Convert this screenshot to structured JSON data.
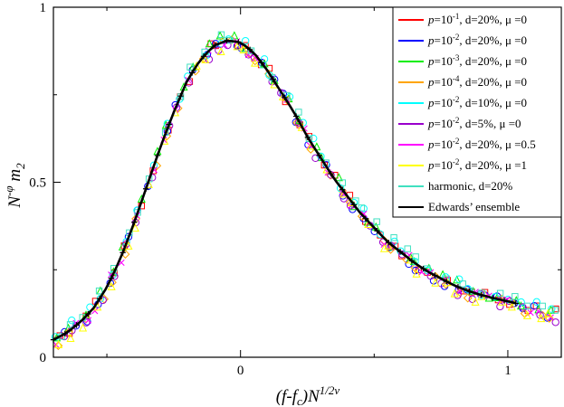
{
  "chart_data": {
    "type": "scatter",
    "title": "",
    "xlabel": "(f-f_c)N^{1/2ν}",
    "ylabel": "N^{-φ} m_2",
    "xlim": [
      -0.7,
      1.2
    ],
    "ylim": [
      0,
      1
    ],
    "x_ticks": [
      0,
      1
    ],
    "x_tick_labels": [
      "0",
      "1"
    ],
    "y_ticks": [
      0,
      0.5,
      1
    ],
    "y_tick_labels": [
      "0",
      "0.5",
      "1"
    ],
    "grid": false,
    "legend_position": "top-right",
    "series": [
      {
        "name": "p=10^{-1}, d=20%, μ =0",
        "color": "#ff0000",
        "marker": "square",
        "y_offset": 0.0
      },
      {
        "name": "p=10^{-2}, d=20%, μ =0",
        "color": "#0000ff",
        "marker": "circle",
        "y_offset": -0.005
      },
      {
        "name": "p=10^{-3}, d=20%, μ =0",
        "color": "#00ee00",
        "marker": "triangle",
        "y_offset": 0.006
      },
      {
        "name": "p=10^{-4}, d=20%, μ =0",
        "color": "#ffa500",
        "marker": "diamond",
        "y_offset": -0.01
      },
      {
        "name": "p=10^{-2}, d=10%, μ =0",
        "color": "#00ffff",
        "marker": "circle",
        "y_offset": 0.01
      },
      {
        "name": "p=10^{-2}, d=5%, μ =0",
        "color": "#9900cc",
        "marker": "circle",
        "y_offset": -0.012
      },
      {
        "name": "p=10^{-2}, d=20%, μ =0.5",
        "color": "#ff00ff",
        "marker": "cross",
        "y_offset": -0.004
      },
      {
        "name": "p=10^{-2}, d=20%, μ =1",
        "color": "#ffff00",
        "marker": "triangle",
        "y_offset": -0.015
      },
      {
        "name": "harmonic,  d=20%",
        "color": "#40e0c0",
        "marker": "square",
        "y_offset": 0.012
      },
      {
        "name": "Edwards’ ensemble",
        "color": "#000000",
        "marker": "plus",
        "y_offset": 0.0
      }
    ],
    "curve": {
      "x": [
        -0.7,
        -0.65,
        -0.6,
        -0.55,
        -0.5,
        -0.45,
        -0.4,
        -0.35,
        -0.3,
        -0.25,
        -0.2,
        -0.15,
        -0.1,
        -0.05,
        0.0,
        0.05,
        0.1,
        0.15,
        0.2,
        0.25,
        0.3,
        0.35,
        0.4,
        0.45,
        0.5,
        0.55,
        0.6,
        0.65,
        0.7,
        0.75,
        0.8,
        0.85,
        0.9,
        0.95,
        1.0,
        1.05,
        1.1,
        1.15,
        1.2
      ],
      "y": [
        0.05,
        0.07,
        0.1,
        0.14,
        0.2,
        0.28,
        0.38,
        0.49,
        0.6,
        0.7,
        0.79,
        0.85,
        0.89,
        0.905,
        0.9,
        0.87,
        0.82,
        0.76,
        0.7,
        0.63,
        0.57,
        0.51,
        0.46,
        0.41,
        0.37,
        0.33,
        0.3,
        0.27,
        0.245,
        0.225,
        0.205,
        0.19,
        0.178,
        0.168,
        0.16,
        0.15,
        0.14,
        0.13,
        0.12
      ]
    },
    "edwards_range": [
      -0.7,
      1.03
    ]
  }
}
